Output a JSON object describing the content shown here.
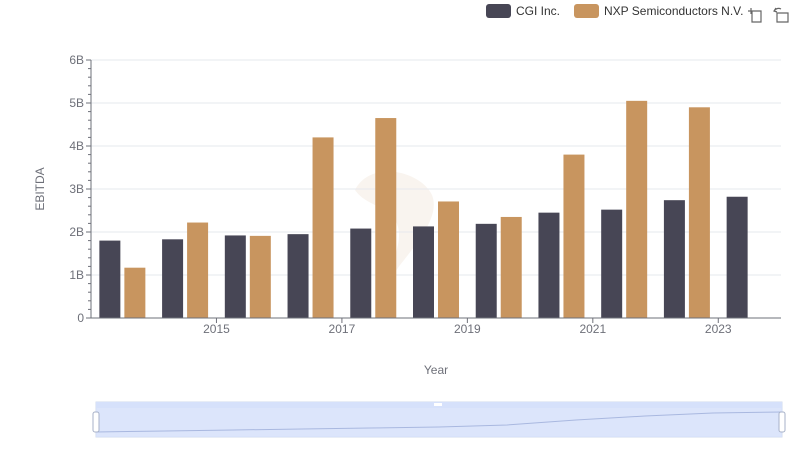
{
  "toolbox": {
    "zoom_icon": "zoom-icon",
    "restore_icon": "restore-icon"
  },
  "colors": {
    "cgi": "#474655",
    "nxp": "#c8955f",
    "grid": "#e6e8ee",
    "axis": "#6e7079",
    "slider_fill": "#d6e1fb",
    "slider_border": "#c4cce0"
  },
  "chart_data": {
    "type": "bar",
    "x": [
      2014,
      2015,
      2016,
      2017,
      2018,
      2019,
      2020,
      2021,
      2022,
      2023,
      2024
    ],
    "x_tick_labels": [
      "2015",
      "2017",
      "2019",
      "2021",
      "2023"
    ],
    "y_tick_labels": [
      "0",
      "1B",
      "2B",
      "3B",
      "4B",
      "5B",
      "6B"
    ],
    "series": [
      {
        "name": "CGI Inc.",
        "color": "#474655",
        "values": [
          1800000000,
          1830000000,
          1920000000,
          1950000000,
          2080000000,
          2130000000,
          2190000000,
          2450000000,
          2520000000,
          2740000000,
          2820000000
        ]
      },
      {
        "name": "NXP Semiconductors N.V.",
        "color": "#c8955f",
        "values": [
          1170000000,
          2220000000,
          1910000000,
          4200000000,
          4650000000,
          2710000000,
          2350000000,
          3800000000,
          5050000000,
          4900000000,
          null
        ]
      }
    ],
    "xlabel": "Year",
    "ylabel": "EBITDA",
    "ylim": [
      0,
      6000000000
    ],
    "grid": true,
    "legend_position": "top-right"
  }
}
